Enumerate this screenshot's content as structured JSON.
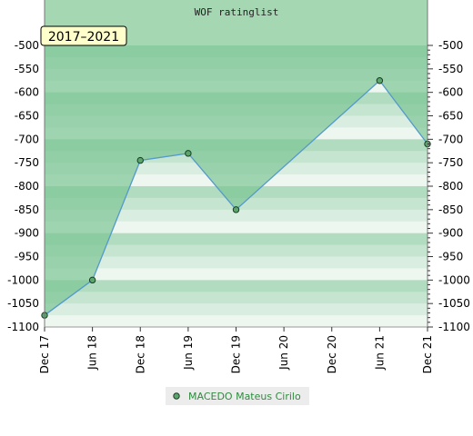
{
  "colors": {
    "top_band": "#a6d7b3",
    "stripe_light": "#ffffff",
    "stripe_dark": "#7ec596",
    "fill_dark": "#7cc494",
    "line": "#5599cc",
    "marker": "#5ca66e",
    "period_box": "#ffffcc",
    "legend_box": "#ececec"
  },
  "chart_data": {
    "type": "area",
    "title": "WOF ratinglist",
    "period_label": "2017–2021",
    "x_tick_labels": [
      "Dec 17",
      "Jun 18",
      "Dec 18",
      "Jun 19",
      "Dec 19",
      "Jun 20",
      "Dec 20",
      "Jun 21",
      "Dec 21"
    ],
    "y_tick_labels": [
      "-500",
      "-550",
      "-600",
      "-650",
      "-700",
      "-750",
      "-800",
      "-850",
      "-900",
      "-950",
      "-1000",
      "-1050",
      "-1100"
    ],
    "y_tick_values": [
      -500,
      -550,
      -600,
      -650,
      -700,
      -750,
      -800,
      -850,
      -900,
      -950,
      -1000,
      -1050,
      -1100
    ],
    "ylim": [
      -1100,
      -500
    ],
    "x_index_range": [
      0,
      8
    ],
    "grid": true,
    "legend_position": "bottom",
    "series": [
      {
        "name": "MACEDO Mateus Cirilo",
        "x": [
          "Dec 17",
          "Jun 18",
          "Dec 18",
          "Jun 19",
          "Dec 19",
          "Jun 21",
          "Dec 21"
        ],
        "x_index": [
          0,
          1,
          2,
          3,
          4,
          7,
          8
        ],
        "y": [
          -1075,
          -1000,
          -745,
          -730,
          -850,
          -575,
          -710
        ]
      }
    ]
  }
}
